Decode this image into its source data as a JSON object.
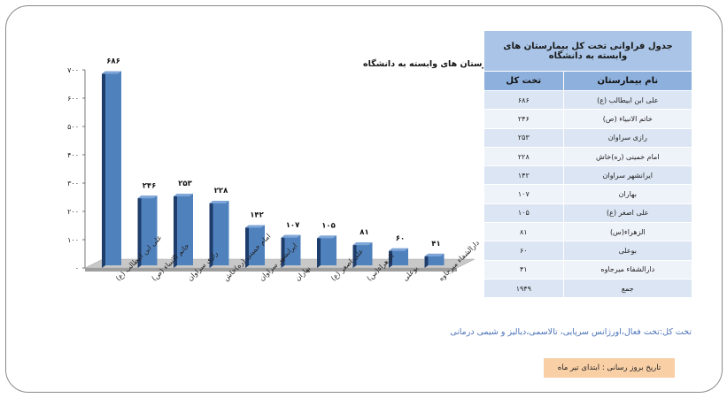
{
  "chart_data": {
    "type": "bar",
    "title": "جدول فراوانی تخت کل بیمارستان های وابسته به دانشگاه",
    "categories": [
      "علی ابن ابیطالب (ع)",
      "خاتم الانبیاء (ص)",
      "رازی سراوان",
      "امام خمینی (ره)خاش",
      "ایرانشهر سراوان",
      "بهاران",
      "علی اصغر (ع)",
      "الزهراء(س)",
      "بوعلی",
      "دارالشفاء میرجاوه"
    ],
    "values": [
      686,
      246,
      253,
      228,
      142,
      107,
      105,
      81,
      60,
      41
    ],
    "value_labels": [
      "۶۸۶",
      "۲۴۶",
      "۲۵۳",
      "۲۲۸",
      "۱۴۲",
      "۱۰۷",
      "۱۰۵",
      "۸۱",
      "۶۰",
      "۴۱"
    ],
    "ylim": [
      0,
      700
    ],
    "yticks": [
      0,
      100,
      200,
      300,
      400,
      500,
      600,
      700
    ],
    "ytick_labels": [
      "۰",
      "۱۰۰",
      "۲۰۰",
      "۳۰۰",
      "۴۰۰",
      "۵۰۰",
      "۶۰۰",
      "۷۰۰"
    ],
    "xlabel": "",
    "ylabel": "",
    "grid": false,
    "legend": "none",
    "bar_color": "#4f81bd",
    "bar_side_color": "#1f3d6b",
    "bar_top_color": "#7fa6d8",
    "floor_color": "#c8c8c8"
  },
  "table": {
    "caption": "جدول فراوانی تخت کل بیمارستان های وابسته به دانشگاه",
    "col_name": "نام بیمارستان",
    "col_value": "تخت کل",
    "rows": [
      {
        "name": "علی ابن ابیطالب (ع)",
        "value": "۶۸۶"
      },
      {
        "name": "خاتم الانبیاء (ص)",
        "value": "۲۴۶"
      },
      {
        "name": "رازی سراوان",
        "value": "۲۵۳"
      },
      {
        "name": "امام خمینی (ره)خاش",
        "value": "۲۲۸"
      },
      {
        "name": "ایرانشهر سراوان",
        "value": "۱۴۲"
      },
      {
        "name": "بهاران",
        "value": "۱۰۷"
      },
      {
        "name": "علی اصغر (ع)",
        "value": "۱۰۵"
      },
      {
        "name": "الزهراء(س)",
        "value": "۸۱"
      },
      {
        "name": "بوعلی",
        "value": "۶۰"
      },
      {
        "name": "دارالشفاء میرجاوه",
        "value": "۴۱"
      },
      {
        "name": "جمع",
        "value": "۱۹۴۹"
      }
    ]
  },
  "footnote": "تخت کل:تخت فعال،اورژانس سرپایی، تالاسمی،دیالیز و شیمی درمانی",
  "date_note": "تاریخ بروز رسانی : ابتدای تیر ماه"
}
